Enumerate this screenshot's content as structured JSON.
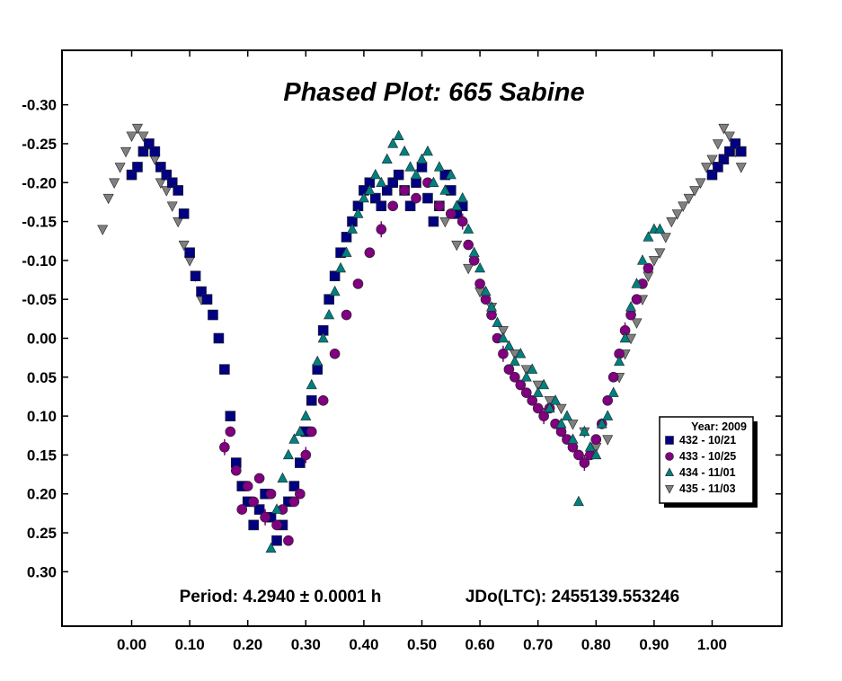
{
  "chart_data": {
    "type": "scatter",
    "title": "Phased Plot: 665 Sabine",
    "xlabel": "",
    "ylabel": "",
    "xlim": [
      -0.12,
      1.12
    ],
    "ylim": [
      0.37,
      -0.37
    ],
    "y_inverted": true,
    "xticks": [
      "0.00",
      "0.10",
      "0.20",
      "0.30",
      "0.40",
      "0.50",
      "0.60",
      "0.70",
      "0.80",
      "0.90",
      "1.00"
    ],
    "yticks": [
      "-0.30",
      "-0.25",
      "-0.20",
      "-0.15",
      "-0.10",
      "-0.05",
      "0.00",
      "0.05",
      "0.10",
      "0.15",
      "0.20",
      "0.25",
      "0.30"
    ],
    "annotations": {
      "period": "Period: 4.2940 ± 0.0001 h",
      "jdo": "JDo(LTC): 2455139.553246"
    },
    "legend": {
      "title": "Year: 2009",
      "position": "right",
      "entries": [
        "432 - 10/21",
        "433 - 10/25",
        "434 - 11/01",
        "435 - 11/03"
      ]
    },
    "series": [
      {
        "name": "432 - 10/21",
        "marker": "square",
        "color": "#000080",
        "x": [
          0.0,
          0.01,
          0.02,
          0.03,
          0.04,
          0.05,
          0.06,
          0.07,
          0.08,
          0.09,
          0.1,
          0.11,
          0.12,
          0.13,
          0.14,
          0.15,
          0.16,
          0.17,
          0.18,
          0.19,
          0.2,
          0.21,
          0.22,
          0.23,
          0.24,
          0.25,
          0.26,
          0.27,
          0.28,
          0.29,
          0.3,
          0.31,
          0.32,
          0.33,
          0.34,
          0.35,
          0.36,
          0.37,
          0.38,
          0.39,
          0.4,
          0.41,
          0.42,
          0.43,
          0.44,
          0.45,
          0.46,
          0.47,
          0.48,
          0.49,
          0.5,
          0.51,
          0.52,
          0.53,
          0.54,
          0.55,
          0.56,
          0.57,
          1.0,
          1.01,
          1.02,
          1.03,
          1.04,
          1.05
        ],
        "y": [
          -0.21,
          -0.22,
          -0.24,
          -0.25,
          -0.24,
          -0.22,
          -0.21,
          -0.2,
          -0.19,
          -0.16,
          -0.11,
          -0.08,
          -0.06,
          -0.05,
          -0.03,
          0.0,
          0.04,
          0.1,
          0.16,
          0.19,
          0.21,
          0.24,
          0.22,
          0.2,
          0.23,
          0.26,
          0.24,
          0.21,
          0.19,
          0.16,
          0.12,
          0.08,
          0.04,
          -0.01,
          -0.05,
          -0.08,
          -0.11,
          -0.13,
          -0.15,
          -0.17,
          -0.19,
          -0.2,
          -0.18,
          -0.17,
          -0.19,
          -0.2,
          -0.21,
          -0.19,
          -0.17,
          -0.2,
          -0.22,
          -0.18,
          -0.15,
          -0.17,
          -0.21,
          -0.19,
          -0.16,
          -0.17,
          -0.21,
          -0.22,
          -0.23,
          -0.24,
          -0.25,
          -0.24
        ]
      },
      {
        "name": "433 - 10/25",
        "marker": "circle",
        "color": "#800080",
        "x": [
          0.16,
          0.17,
          0.18,
          0.19,
          0.2,
          0.21,
          0.22,
          0.23,
          0.24,
          0.25,
          0.26,
          0.27,
          0.28,
          0.29,
          0.3,
          0.31,
          0.33,
          0.35,
          0.37,
          0.39,
          0.41,
          0.43,
          0.45,
          0.47,
          0.49,
          0.51,
          0.53,
          0.55,
          0.57,
          0.58,
          0.59,
          0.6,
          0.61,
          0.62,
          0.63,
          0.64,
          0.65,
          0.66,
          0.67,
          0.68,
          0.69,
          0.7,
          0.71,
          0.72,
          0.73,
          0.74,
          0.75,
          0.76,
          0.77,
          0.78,
          0.79,
          0.8,
          0.81,
          0.82,
          0.83,
          0.84,
          0.85,
          0.86,
          0.87,
          0.88,
          0.89
        ],
        "y": [
          0.14,
          0.12,
          0.17,
          0.22,
          0.19,
          0.21,
          0.18,
          0.23,
          0.2,
          0.24,
          0.22,
          0.26,
          0.21,
          0.2,
          0.15,
          0.12,
          0.08,
          0.02,
          -0.03,
          -0.07,
          -0.11,
          -0.14,
          -0.17,
          -0.19,
          -0.18,
          -0.2,
          -0.17,
          -0.16,
          -0.15,
          -0.12,
          -0.1,
          -0.07,
          -0.05,
          -0.03,
          0.0,
          0.02,
          0.04,
          0.05,
          0.06,
          0.07,
          0.08,
          0.09,
          0.1,
          0.09,
          0.11,
          0.12,
          0.13,
          0.14,
          0.15,
          0.16,
          0.15,
          0.13,
          0.11,
          0.08,
          0.05,
          0.02,
          -0.01,
          -0.03,
          -0.05,
          -0.07,
          -0.09
        ]
      },
      {
        "name": "434 - 11/01",
        "marker": "triangle-up",
        "color": "#008080",
        "x": [
          0.24,
          0.25,
          0.26,
          0.27,
          0.28,
          0.29,
          0.3,
          0.31,
          0.32,
          0.33,
          0.34,
          0.35,
          0.36,
          0.37,
          0.38,
          0.39,
          0.4,
          0.41,
          0.42,
          0.43,
          0.44,
          0.45,
          0.46,
          0.47,
          0.48,
          0.49,
          0.5,
          0.51,
          0.52,
          0.53,
          0.54,
          0.55,
          0.56,
          0.57,
          0.58,
          0.59,
          0.6,
          0.61,
          0.62,
          0.63,
          0.64,
          0.65,
          0.66,
          0.67,
          0.68,
          0.69,
          0.7,
          0.71,
          0.72,
          0.73,
          0.74,
          0.75,
          0.76,
          0.77,
          0.78,
          0.79,
          0.8,
          0.81,
          0.82,
          0.83,
          0.84,
          0.85,
          0.86,
          0.87,
          0.88,
          0.89,
          0.9,
          0.91
        ],
        "y": [
          0.27,
          0.22,
          0.18,
          0.15,
          0.13,
          0.12,
          0.1,
          0.06,
          0.03,
          0.0,
          -0.03,
          -0.06,
          -0.09,
          -0.11,
          -0.14,
          -0.16,
          -0.18,
          -0.19,
          -0.21,
          -0.2,
          -0.23,
          -0.25,
          -0.26,
          -0.24,
          -0.22,
          -0.21,
          -0.23,
          -0.24,
          -0.2,
          -0.22,
          -0.19,
          -0.21,
          -0.17,
          -0.18,
          -0.14,
          -0.11,
          -0.09,
          -0.06,
          -0.04,
          -0.02,
          0.0,
          0.01,
          0.03,
          0.02,
          0.05,
          0.04,
          0.07,
          0.06,
          0.09,
          0.08,
          0.11,
          0.1,
          0.13,
          0.21,
          0.12,
          0.14,
          0.15,
          0.11,
          0.1,
          0.07,
          0.03,
          0.0,
          -0.04,
          -0.07,
          -0.1,
          -0.13,
          -0.14,
          -0.14
        ]
      },
      {
        "name": "435 - 11/03",
        "marker": "triangle-down",
        "color": "#808080",
        "x": [
          -0.05,
          -0.04,
          -0.03,
          -0.02,
          -0.01,
          0.0,
          0.01,
          0.02,
          0.03,
          0.04,
          0.05,
          0.06,
          0.07,
          0.08,
          0.09,
          0.1,
          0.11,
          0.12,
          0.54,
          0.56,
          0.58,
          0.6,
          0.62,
          0.64,
          0.66,
          0.68,
          0.7,
          0.72,
          0.74,
          0.76,
          0.78,
          0.8,
          0.82,
          0.84,
          0.85,
          0.86,
          0.87,
          0.88,
          0.89,
          0.9,
          0.91,
          0.92,
          0.93,
          0.94,
          0.95,
          0.96,
          0.97,
          0.98,
          0.99,
          1.0,
          1.01,
          1.02,
          1.03,
          1.04,
          1.05
        ],
        "y": [
          -0.14,
          -0.18,
          -0.2,
          -0.22,
          -0.24,
          -0.26,
          -0.27,
          -0.26,
          -0.25,
          -0.23,
          -0.2,
          -0.19,
          -0.17,
          -0.15,
          -0.12,
          -0.1,
          -0.08,
          -0.05,
          -0.15,
          -0.12,
          -0.09,
          -0.06,
          -0.04,
          -0.01,
          0.02,
          0.04,
          0.06,
          0.08,
          0.09,
          0.11,
          0.12,
          0.14,
          0.13,
          0.05,
          0.02,
          0.0,
          -0.02,
          -0.05,
          -0.08,
          -0.1,
          -0.11,
          -0.13,
          -0.15,
          -0.16,
          -0.17,
          -0.18,
          -0.19,
          -0.2,
          -0.22,
          -0.23,
          -0.25,
          -0.27,
          -0.26,
          -0.24,
          -0.22
        ]
      }
    ]
  }
}
